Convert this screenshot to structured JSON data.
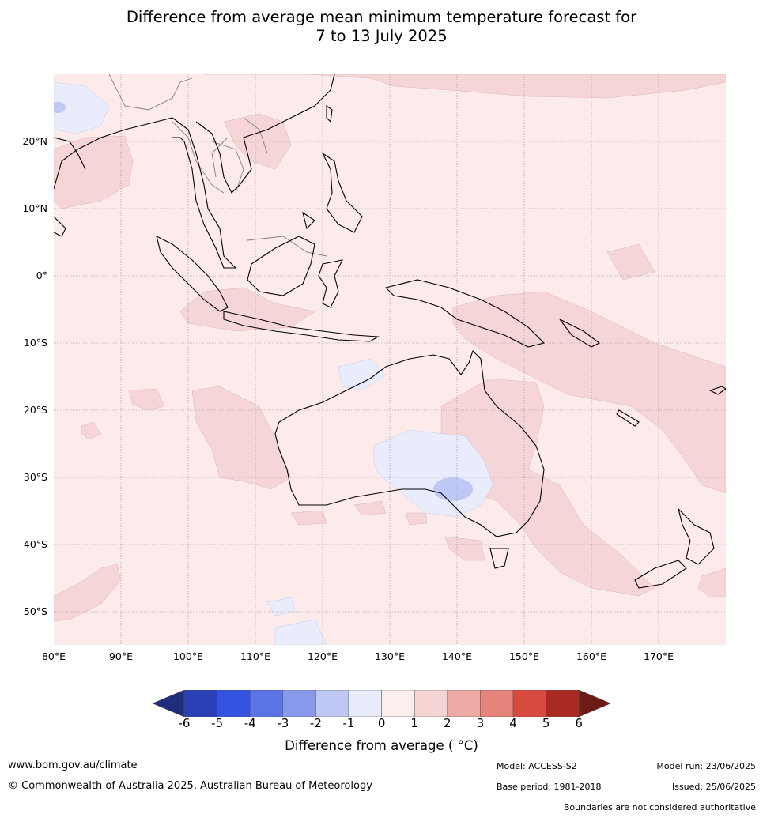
{
  "title": {
    "line1": "Difference from average mean minimum temperature forecast for",
    "line2": "7 to 13 July 2025"
  },
  "map": {
    "lon_labels": [
      "80°E",
      "90°E",
      "100°E",
      "110°E",
      "120°E",
      "130°E",
      "140°E",
      "150°E",
      "160°E",
      "170°E"
    ],
    "lat_labels": [
      "20°N",
      "10°N",
      "0°",
      "10°S",
      "20°S",
      "30°S",
      "40°S",
      "50°S"
    ],
    "colors": {
      "ocean_default": "#fcebea",
      "warm_0_1": "#fcebea",
      "warm_1_2": "#f5d5d5",
      "cool_m1_0": "#e8ecfb",
      "cool_m2_m1": "#c0c8f5",
      "coastline": "#000000",
      "borders": "#808080"
    }
  },
  "colorbar": {
    "ticks": [
      "-6",
      "-5",
      "-4",
      "-3",
      "-2",
      "-1",
      "0",
      "1",
      "2",
      "3",
      "4",
      "5",
      "6"
    ],
    "colors": [
      "#1f2d7a",
      "#2a3fb5",
      "#3352e0",
      "#5a74e6",
      "#8899eb",
      "#bfc7f4",
      "#e8ecfb",
      "#fdeeee",
      "#f6d4d4",
      "#edaaa5",
      "#e6837b",
      "#d94a3e",
      "#a82a22",
      "#6e1a16"
    ],
    "label": "Difference from average ( °C)"
  },
  "footer": {
    "website": "www.bom.gov.au/climate",
    "copyright": "© Commonwealth of Australia 2025, Australian Bureau of Meteorology",
    "model": "Model: ACCESS-S2",
    "base_period": "Base period: 1981-2018",
    "model_run": "Model run: 23/06/2025",
    "issued": "Issued: 25/06/2025",
    "disclaimer": "Boundaries are not considered authoritative"
  }
}
